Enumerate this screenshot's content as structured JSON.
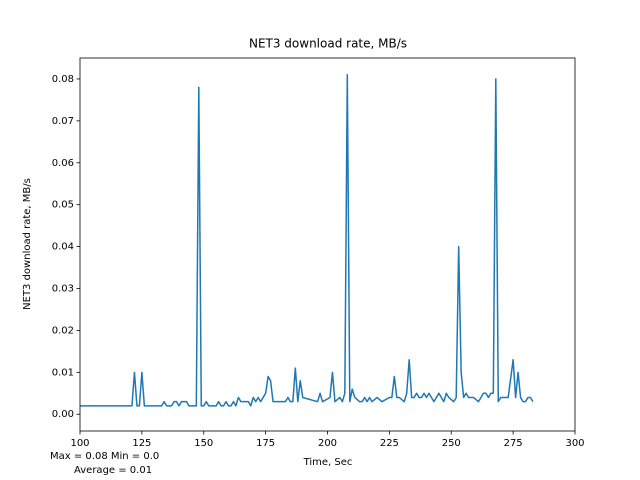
{
  "chart_data": {
    "type": "line",
    "title": "NET3 download rate, MB/s",
    "xlabel": "Time, Sec",
    "ylabel": "NET3 download rate, MB/s",
    "annotations": [
      "Max = 0.08  Min = 0.0",
      "Average = 0.01"
    ],
    "color": "#1f77b4",
    "xlim": [
      100,
      300
    ],
    "xticks": [
      100,
      125,
      150,
      175,
      200,
      225,
      250,
      275,
      300
    ],
    "ylim": [
      -0.004,
      0.085
    ],
    "yticks": [
      {
        "value": 0,
        "label": "0.00"
      },
      {
        "value": 0.01,
        "label": "0.01"
      },
      {
        "value": 0.02,
        "label": "0.02"
      },
      {
        "value": 0.03,
        "label": "0.03"
      },
      {
        "value": 0.04,
        "label": "0.04"
      },
      {
        "value": 0.05,
        "label": "0.05"
      },
      {
        "value": 0.06,
        "label": "0.06"
      },
      {
        "value": 0.07,
        "label": "0.07"
      },
      {
        "value": 0.08,
        "label": "0.08"
      }
    ],
    "x": [
      100,
      121,
      122,
      123,
      124,
      125,
      126,
      133,
      134,
      135,
      137,
      138,
      139,
      140,
      141,
      143,
      144,
      147,
      148,
      149,
      150,
      151,
      152,
      155,
      156,
      157,
      158,
      159,
      160,
      161,
      162,
      163,
      164,
      165,
      166,
      168,
      169,
      170,
      171,
      172,
      173,
      174,
      175,
      176,
      177,
      178,
      183,
      184,
      185,
      186,
      187,
      188,
      189,
      190,
      196,
      197,
      198,
      201,
      202,
      203,
      205,
      206,
      207,
      208,
      209,
      210,
      211,
      213,
      214,
      215,
      216,
      217,
      218,
      220,
      222,
      225,
      226,
      227,
      228,
      229,
      231,
      232,
      233,
      234,
      235,
      236,
      237,
      238,
      239,
      240,
      241,
      242,
      243,
      244,
      245,
      246,
      247,
      248,
      249,
      251,
      252,
      253,
      254,
      255,
      256,
      257,
      258,
      259,
      261,
      262,
      263,
      264,
      265,
      266,
      267,
      268,
      269,
      270,
      272,
      273,
      275,
      276,
      277,
      278,
      279,
      280,
      281,
      282,
      283
    ],
    "values": [
      0.002,
      0.002,
      0.01,
      0.002,
      0.002,
      0.01,
      0.002,
      0.002,
      0.003,
      0.002,
      0.002,
      0.003,
      0.003,
      0.002,
      0.003,
      0.003,
      0.002,
      0.002,
      0.078,
      0.002,
      0.002,
      0.003,
      0.002,
      0.002,
      0.003,
      0.002,
      0.002,
      0.003,
      0.002,
      0.002,
      0.003,
      0.002,
      0.004,
      0.003,
      0.003,
      0.003,
      0.002,
      0.004,
      0.003,
      0.004,
      0.003,
      0.004,
      0.005,
      0.009,
      0.008,
      0.003,
      0.003,
      0.004,
      0.003,
      0.003,
      0.011,
      0.003,
      0.008,
      0.004,
      0.003,
      0.005,
      0.003,
      0.004,
      0.01,
      0.003,
      0.004,
      0.003,
      0.005,
      0.081,
      0.003,
      0.006,
      0.004,
      0.003,
      0.003,
      0.004,
      0.003,
      0.004,
      0.003,
      0.004,
      0.003,
      0.004,
      0.004,
      0.009,
      0.004,
      0.004,
      0.003,
      0.005,
      0.013,
      0.004,
      0.004,
      0.005,
      0.004,
      0.004,
      0.005,
      0.004,
      0.005,
      0.004,
      0.003,
      0.004,
      0.005,
      0.004,
      0.003,
      0.005,
      0.004,
      0.003,
      0.004,
      0.04,
      0.01,
      0.004,
      0.005,
      0.004,
      0.004,
      0.004,
      0.003,
      0.004,
      0.005,
      0.005,
      0.004,
      0.005,
      0.005,
      0.08,
      0.003,
      0.004,
      0.004,
      0.004,
      0.013,
      0.004,
      0.01,
      0.004,
      0.003,
      0.003,
      0.004,
      0.004,
      0.003
    ]
  }
}
